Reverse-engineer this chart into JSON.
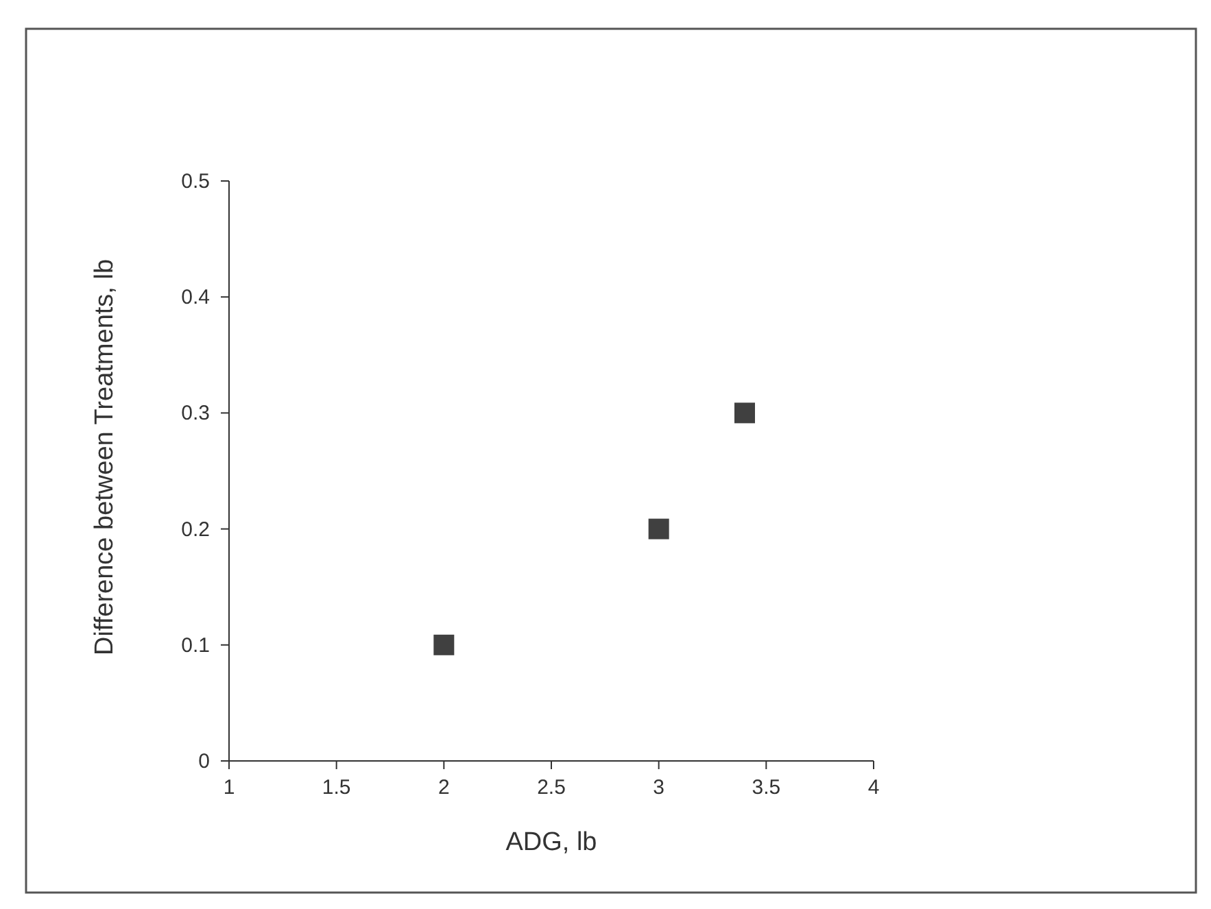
{
  "chart_data": {
    "type": "scatter",
    "xlabel": "ADG, lb",
    "ylabel": "Difference between Treatments, lb",
    "x": [
      2,
      3,
      3.4
    ],
    "series": [
      {
        "color": "#404040",
        "values": [
          0.1,
          0.2,
          0.3
        ]
      }
    ],
    "marker": "square",
    "xlim": [
      1,
      4
    ],
    "ylim": [
      0,
      0.5
    ],
    "xticks": [
      1,
      1.5,
      2,
      2.5,
      3,
      3.5,
      4
    ],
    "yticks": [
      0,
      0.1,
      0.2,
      0.3,
      0.4,
      0.5
    ],
    "grid": false
  }
}
